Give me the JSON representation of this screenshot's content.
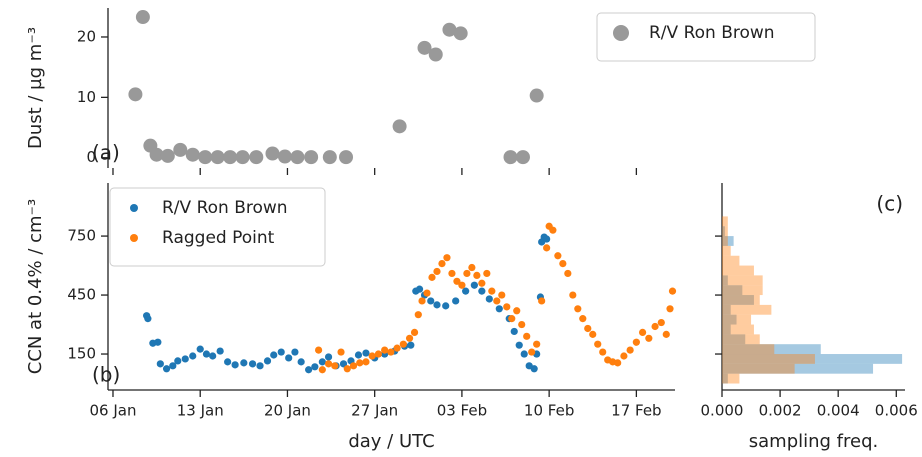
{
  "chart_data": [
    {
      "type": "scatter",
      "ylabel": "Dust / µg m⁻³",
      "annotation": "(a)",
      "legend": "upper right",
      "xlim": [
        5.6,
        51.1
      ],
      "ylim": [
        -1.7,
        24.8
      ],
      "yticks": [
        0,
        10,
        20
      ],
      "series": [
        {
          "name": "R/V Ron Brown",
          "color": "#999999",
          "x": [
            7.8,
            8.4,
            9.0,
            9.5,
            10.4,
            11.4,
            12.4,
            13.4,
            14.4,
            15.4,
            16.4,
            17.5,
            18.8,
            19.8,
            20.8,
            21.9,
            23.4,
            24.7,
            29.0,
            31.0,
            31.9,
            33.0,
            33.9,
            37.9,
            38.9,
            40.0
          ],
          "values": [
            10.5,
            23.3,
            2.0,
            0.5,
            0.3,
            1.3,
            0.5,
            0.1,
            0.1,
            0.1,
            0.1,
            0.1,
            0.7,
            0.2,
            0.1,
            0.1,
            0.1,
            0.1,
            5.2,
            18.2,
            17.1,
            21.2,
            20.6,
            0.1,
            0.1,
            10.3
          ]
        }
      ]
    },
    {
      "type": "scatter",
      "ylabel": "CCN at 0.4% / cm⁻³",
      "xlabel": "day / UTC",
      "annotation": "(b)",
      "legend": "upper left",
      "xlim": [
        5.6,
        51.1
      ],
      "ylim": [
        -33,
        1020
      ],
      "yticks": [
        150,
        450,
        750
      ],
      "xticks": [
        {
          "value": 6,
          "label": "06 Jan"
        },
        {
          "value": 13,
          "label": "13 Jan"
        },
        {
          "value": 20,
          "label": "20 Jan"
        },
        {
          "value": 27,
          "label": "27 Jan"
        },
        {
          "value": 34,
          "label": "03 Feb"
        },
        {
          "value": 41,
          "label": "10 Feb"
        },
        {
          "value": 48,
          "label": "17 Feb"
        }
      ],
      "series": [
        {
          "name": "R/V Ron Brown",
          "color": "#1f77b4",
          "x": [
            8.7,
            8.8,
            9.2,
            9.6,
            9.8,
            10.3,
            10.8,
            11.2,
            11.8,
            12.4,
            13.0,
            13.5,
            14.0,
            14.6,
            15.2,
            15.8,
            16.5,
            17.2,
            17.8,
            18.4,
            18.9,
            19.5,
            20.1,
            20.6,
            21.1,
            21.7,
            22.2,
            22.8,
            23.3,
            23.9,
            24.5,
            25.1,
            25.7,
            26.3,
            27.0,
            27.8,
            28.6,
            29.4,
            29.9,
            30.3,
            30.6,
            31.0,
            31.5,
            32.0,
            32.7,
            33.5,
            34.3,
            35.0,
            35.6,
            36.2,
            37.0,
            37.8,
            38.2,
            38.6,
            39.0,
            39.4,
            39.8,
            40.0,
            40.3,
            40.4,
            40.6,
            40.8
          ],
          "values": [
            345,
            330,
            205,
            210,
            100,
            75,
            90,
            115,
            125,
            140,
            175,
            150,
            140,
            165,
            110,
            95,
            105,
            100,
            90,
            115,
            145,
            160,
            130,
            160,
            110,
            70,
            85,
            110,
            135,
            90,
            100,
            115,
            145,
            155,
            130,
            150,
            165,
            190,
            195,
            470,
            480,
            450,
            420,
            400,
            395,
            420,
            470,
            500,
            470,
            430,
            380,
            330,
            265,
            195,
            150,
            90,
            75,
            150,
            440,
            720,
            745,
            735
          ]
        },
        {
          "name": "Ragged Point",
          "color": "#ff7f0e",
          "x": [
            22.5,
            22.8,
            23.3,
            23.8,
            24.3,
            24.8,
            25.3,
            25.8,
            26.3,
            26.8,
            27.3,
            27.8,
            28.3,
            28.8,
            29.3,
            29.8,
            30.2,
            30.5,
            30.8,
            31.2,
            31.6,
            32.0,
            32.4,
            32.8,
            33.2,
            33.6,
            34.0,
            34.4,
            34.8,
            35.2,
            35.6,
            36.0,
            36.4,
            36.8,
            37.2,
            37.6,
            38.0,
            38.4,
            38.8,
            39.2,
            39.6,
            40.0,
            40.4,
            40.8,
            41.0,
            41.3,
            41.7,
            42.1,
            42.5,
            42.9,
            43.3,
            43.7,
            44.1,
            44.5,
            44.9,
            45.3,
            45.7,
            46.1,
            46.5,
            47.0,
            47.5,
            48.0,
            48.5,
            49.0,
            49.5,
            50.0,
            50.4,
            50.7,
            50.9
          ],
          "values": [
            170,
            70,
            100,
            90,
            160,
            75,
            90,
            105,
            110,
            140,
            150,
            170,
            160,
            180,
            200,
            230,
            260,
            350,
            420,
            460,
            540,
            570,
            610,
            640,
            560,
            520,
            500,
            560,
            590,
            550,
            510,
            560,
            470,
            420,
            450,
            390,
            330,
            370,
            300,
            240,
            160,
            200,
            420,
            690,
            800,
            780,
            650,
            610,
            560,
            450,
            380,
            330,
            280,
            250,
            200,
            160,
            120,
            110,
            105,
            140,
            170,
            210,
            260,
            230,
            290,
            310,
            250,
            380,
            470
          ]
        }
      ]
    },
    {
      "type": "histogram",
      "orientation": "horizontal",
      "xlabel": "sampling freq.",
      "annotation": "(c)",
      "xlim": [
        0,
        0.0063
      ],
      "ylim": [
        -33,
        1020
      ],
      "xticks": [
        {
          "value": 0,
          "label": "0.000"
        },
        {
          "value": 0.002,
          "label": "0.002"
        },
        {
          "value": 0.004,
          "label": "0.004"
        },
        {
          "value": 0.006,
          "label": "0.006"
        }
      ],
      "bins": [
        0,
        50,
        100,
        150,
        200,
        250,
        300,
        350,
        400,
        450,
        500,
        550,
        600,
        650,
        700,
        750,
        800,
        850
      ],
      "series": [
        {
          "color": "#1f77b4",
          "values": [
            0.0002,
            0.0052,
            0.0062,
            0.0034,
            0.0008,
            0.0003,
            0.0005,
            0.0003,
            0.0011,
            0.0007,
            0.0002,
            0,
            0,
            0,
            0.0004,
            0.0001,
            0
          ]
        },
        {
          "color": "#ff7f0e",
          "values": [
            0.0006,
            0.0025,
            0.0032,
            0.0018,
            0.0013,
            0.0011,
            0.001,
            0.0017,
            0.0013,
            0.0014,
            0.0014,
            0.0011,
            0.0006,
            0.0003,
            0.0002,
            0.0002,
            0.0002
          ]
        }
      ]
    }
  ]
}
